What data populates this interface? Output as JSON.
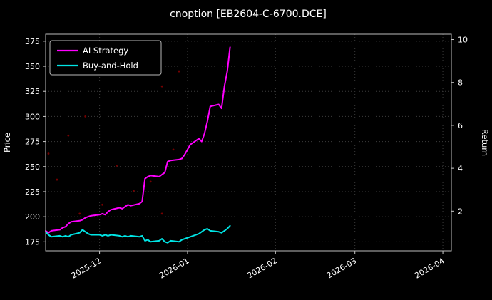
{
  "figure": {
    "title": "cnoption [EB2604-C-6700.DCE]"
  },
  "chart_data": {
    "type": "line",
    "title": "cnoption [EB2604-C-6700.DCE]",
    "ylabel_left": "Price",
    "ylabel_right": "Return",
    "background": "#000000",
    "text_color": "#ffffff",
    "grid": {
      "show": true,
      "color": "#3c3c3c",
      "style": "dotted"
    },
    "legend": {
      "position": "upper-left"
    },
    "x_range": [
      "2025-11-12",
      "2026-04-04"
    ],
    "ylim_left": [
      166,
      382
    ],
    "ylim_right": [
      0.15,
      10.25
    ],
    "yticks_left": [
      175,
      200,
      225,
      250,
      275,
      300,
      325,
      350,
      375
    ],
    "yticks_right": [
      2,
      4,
      6,
      8,
      10
    ],
    "xticks": [
      {
        "date": "2025-12-01",
        "label": "2025-12"
      },
      {
        "date": "2026-01-01",
        "label": "2026-01"
      },
      {
        "date": "2026-02-01",
        "label": "2026-02"
      },
      {
        "date": "2026-03-01",
        "label": "2026-03"
      },
      {
        "date": "2026-04-01",
        "label": "2026-04"
      }
    ],
    "dates": [
      "2025-11-12",
      "2025-11-13",
      "2025-11-14",
      "2025-11-17",
      "2025-11-18",
      "2025-11-19",
      "2025-11-20",
      "2025-11-21",
      "2025-11-24",
      "2025-11-25",
      "2025-11-26",
      "2025-11-27",
      "2025-11-28",
      "2025-12-01",
      "2025-12-02",
      "2025-12-03",
      "2025-12-04",
      "2025-12-05",
      "2025-12-08",
      "2025-12-09",
      "2025-12-10",
      "2025-12-11",
      "2025-12-12",
      "2025-12-15",
      "2025-12-16",
      "2025-12-17",
      "2025-12-18",
      "2025-12-19",
      "2025-12-22",
      "2025-12-23",
      "2025-12-24",
      "2025-12-25",
      "2025-12-26",
      "2025-12-29",
      "2025-12-30",
      "2025-12-31",
      "2026-01-02",
      "2026-01-05",
      "2026-01-06",
      "2026-01-07",
      "2026-01-08",
      "2026-01-09",
      "2026-01-12",
      "2026-01-13",
      "2026-01-14",
      "2026-01-15",
      "2026-01-16"
    ],
    "series": [
      {
        "name": "AI Strategy",
        "color": "#ff00ff",
        "values": [
          186,
          184,
          186,
          187,
          189,
          190,
          193,
          195,
          196,
          197,
          199,
          200,
          201,
          202,
          203,
          202,
          205,
          207,
          209,
          208,
          210,
          212,
          211,
          213,
          215,
          238,
          240,
          241,
          240,
          242,
          244,
          255,
          256,
          257,
          258,
          262,
          272,
          278,
          275,
          283,
          295,
          310,
          312,
          308,
          330,
          345,
          369
        ]
      },
      {
        "name": "Buy-and-Hold",
        "color": "#00e5e5",
        "values": [
          185,
          182,
          180,
          181,
          180,
          181,
          180,
          182,
          184,
          187,
          185,
          183,
          182,
          182,
          181,
          182,
          181,
          182,
          181,
          180,
          181,
          180,
          181,
          180,
          181,
          176,
          177,
          175,
          176,
          178,
          175,
          174,
          176,
          175,
          177,
          178,
          180,
          183,
          185,
          187,
          188,
          186,
          185,
          184,
          186,
          188,
          191
        ]
      }
    ],
    "signal_dots": {
      "color": "#8b0000",
      "points": [
        [
          "2025-11-13",
          263
        ],
        [
          "2025-11-16",
          237
        ],
        [
          "2025-11-20",
          281
        ],
        [
          "2025-11-24",
          203
        ],
        [
          "2025-11-26",
          300
        ],
        [
          "2025-12-02",
          212
        ],
        [
          "2025-12-07",
          251
        ],
        [
          "2025-12-13",
          226
        ],
        [
          "2025-12-19",
          235
        ],
        [
          "2025-12-23",
          330
        ],
        [
          "2025-12-23",
          203
        ],
        [
          "2025-12-27",
          267
        ],
        [
          "2025-12-29",
          345
        ]
      ]
    }
  }
}
